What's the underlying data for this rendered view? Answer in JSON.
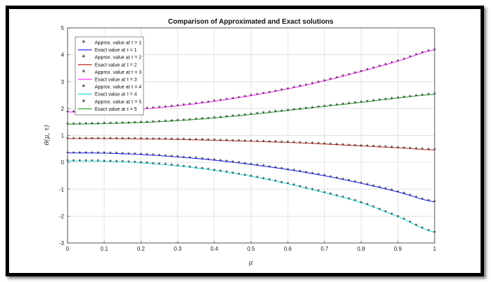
{
  "chart_data": {
    "type": "line",
    "title": "Comparison of Approximated and Exact solutions",
    "xlabel": "μ",
    "ylabel": "θ(μ, τ)",
    "xlim": [
      0,
      1
    ],
    "ylim": [
      -3,
      5
    ],
    "x_ticks": [
      "0",
      "0.1",
      "0.2",
      "0.3",
      "0.4",
      "0.5",
      "0.6",
      "0.7",
      "0.8",
      "0.9",
      "1"
    ],
    "y_ticks": [
      "5",
      "4",
      "3",
      "2",
      "1",
      "0",
      "-1",
      "-2",
      "-3"
    ],
    "grid": true,
    "legend_position": "top-left",
    "x": [
      0,
      0.1,
      0.2,
      0.3,
      0.4,
      0.5,
      0.6,
      0.7,
      0.8,
      0.9,
      1.0
    ],
    "series": [
      {
        "name": "Approx. value at τ = 1",
        "marker": "*",
        "color": "#000000",
        "values": [
          0.35,
          0.34,
          0.29,
          0.2,
          0.08,
          -0.08,
          -0.27,
          -0.5,
          -0.78,
          -1.1,
          -1.47
        ]
      },
      {
        "name": "Exact value at τ = 1",
        "color": "#2b2bff",
        "values": [
          0.35,
          0.34,
          0.29,
          0.2,
          0.08,
          -0.08,
          -0.27,
          -0.5,
          -0.78,
          -1.1,
          -1.47
        ]
      },
      {
        "name": "Approx. value at τ = 2",
        "marker": "*",
        "color": "#000000",
        "values": [
          0.88,
          0.88,
          0.87,
          0.85,
          0.82,
          0.78,
          0.74,
          0.68,
          0.61,
          0.54,
          0.46
        ]
      },
      {
        "name": "Exact value at τ = 2",
        "color": "#c0392b",
        "values": [
          0.88,
          0.88,
          0.87,
          0.85,
          0.82,
          0.78,
          0.74,
          0.68,
          0.61,
          0.54,
          0.46
        ]
      },
      {
        "name": "Approx. value at τ = 3",
        "marker": "*",
        "color": "#000000",
        "values": [
          1.87,
          1.9,
          1.98,
          2.1,
          2.27,
          2.48,
          2.73,
          3.03,
          3.38,
          3.76,
          4.18
        ]
      },
      {
        "name": "Exact value at τ = 3",
        "color": "#ff33ff",
        "values": [
          1.87,
          1.9,
          1.98,
          2.1,
          2.27,
          2.48,
          2.73,
          3.03,
          3.38,
          3.76,
          4.18
        ]
      },
      {
        "name": "Approx. value at τ = 4",
        "marker": "*",
        "color": "#000000",
        "values": [
          0.05,
          0.04,
          -0.02,
          -0.13,
          -0.3,
          -0.52,
          -0.8,
          -1.13,
          -1.5,
          -2.02,
          -2.6
        ]
      },
      {
        "name": "Exact value at τ = 4",
        "color": "#33e0e0",
        "values": [
          0.05,
          0.04,
          -0.02,
          -0.13,
          -0.3,
          -0.52,
          -0.8,
          -1.13,
          -1.5,
          -2.02,
          -2.6
        ]
      },
      {
        "name": "Approx. value at τ = 5",
        "marker": "*",
        "color": "#000000",
        "values": [
          1.42,
          1.44,
          1.48,
          1.55,
          1.65,
          1.78,
          1.93,
          2.08,
          2.23,
          2.39,
          2.53
        ]
      },
      {
        "name": "Exact value at τ = 5",
        "color": "#2ca02c",
        "values": [
          1.42,
          1.44,
          1.48,
          1.55,
          1.65,
          1.78,
          1.93,
          2.08,
          2.23,
          2.39,
          2.53
        ]
      }
    ]
  }
}
